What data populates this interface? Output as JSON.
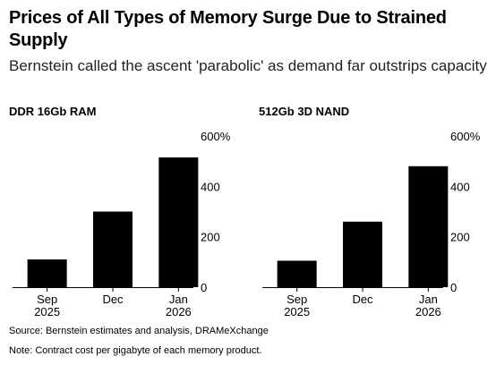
{
  "header": {
    "title": "Prices of All Types of Memory Surge Due to Strained Supply",
    "subtitle": "Bernstein called the ascent 'parabolic' as demand far outstrips capacity"
  },
  "chart_data": [
    {
      "type": "bar",
      "title": "DDR 16Gb RAM",
      "categories": [
        "Sep\n2025",
        "Dec",
        "Jan\n2026"
      ],
      "values": [
        110,
        300,
        515
      ],
      "ylim": [
        0,
        600
      ],
      "yticks": [
        0,
        200,
        400,
        600
      ],
      "ytick_labels": [
        "0",
        "200",
        "400",
        "600%"
      ],
      "grid": false,
      "bar_color": "#000000"
    },
    {
      "type": "bar",
      "title": "512Gb 3D NAND",
      "categories": [
        "Sep\n2025",
        "Dec",
        "Jan\n2026"
      ],
      "values": [
        105,
        260,
        480
      ],
      "ylim": [
        0,
        600
      ],
      "yticks": [
        0,
        200,
        400,
        600
      ],
      "ytick_labels": [
        "0",
        "200",
        "400",
        "600%"
      ],
      "grid": false,
      "bar_color": "#000000"
    }
  ],
  "footer": {
    "source": "Source: Bernstein estimates and analysis, DRAMeXchange",
    "note": "Note: Contract cost per gigabyte of each memory product."
  }
}
